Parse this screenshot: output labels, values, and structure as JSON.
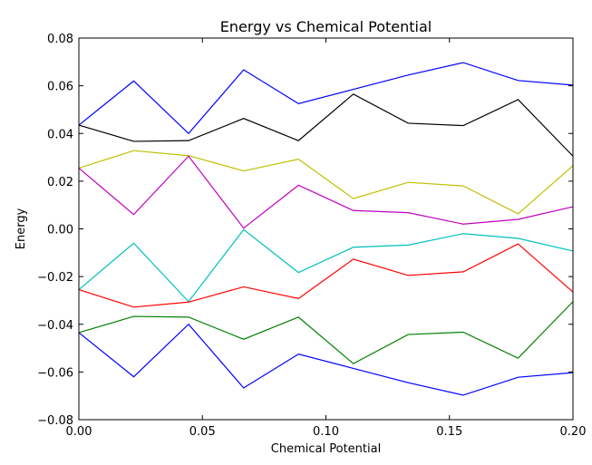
{
  "chart_data": {
    "type": "line",
    "title": "Energy vs Chemical Potential",
    "xlabel": "Chemical Potential",
    "ylabel": "Energy",
    "xlim": [
      0.0,
      0.2
    ],
    "ylim": [
      -0.08,
      0.08
    ],
    "xticks": [
      "0.00",
      "0.05",
      "0.10",
      "0.15",
      "0.20"
    ],
    "yticks": [
      "−0.08",
      "−0.06",
      "−0.04",
      "−0.02",
      "0.00",
      "0.02",
      "0.04",
      "0.06",
      "0.08"
    ],
    "grid": false,
    "x": [
      0.0,
      0.0222,
      0.0444,
      0.0667,
      0.0889,
      0.1111,
      0.1333,
      0.1556,
      0.1778,
      0.2
    ],
    "series": [
      {
        "color": "#0000ff",
        "values": [
          0.0435,
          0.062,
          0.04,
          0.0667,
          0.0525,
          0.0585,
          0.0645,
          0.0697,
          0.0622,
          0.0603
        ]
      },
      {
        "color": "#000000",
        "values": [
          0.0435,
          0.0367,
          0.037,
          0.0463,
          0.037,
          0.0565,
          0.0443,
          0.0433,
          0.0542,
          0.0305
        ]
      },
      {
        "color": "#bfbf00",
        "values": [
          0.0255,
          0.0328,
          0.0307,
          0.0243,
          0.0292,
          0.0127,
          0.0195,
          0.018,
          0.0063,
          0.0265
        ]
      },
      {
        "color": "#bf00bf",
        "values": [
          0.0255,
          0.006,
          0.0305,
          0.0003,
          0.0183,
          0.0077,
          0.0068,
          0.002,
          0.004,
          0.0093
        ]
      },
      {
        "color": "#00bfbf",
        "values": [
          -0.0255,
          -0.006,
          -0.0305,
          -0.0003,
          -0.0183,
          -0.0077,
          -0.0068,
          -0.002,
          -0.004,
          -0.0093
        ]
      },
      {
        "color": "#ff0000",
        "values": [
          -0.0255,
          -0.0328,
          -0.0307,
          -0.0243,
          -0.0292,
          -0.0127,
          -0.0195,
          -0.018,
          -0.0063,
          -0.0265
        ]
      },
      {
        "color": "#008000",
        "values": [
          -0.0435,
          -0.0367,
          -0.037,
          -0.0463,
          -0.037,
          -0.0565,
          -0.0443,
          -0.0433,
          -0.0542,
          -0.0305
        ]
      },
      {
        "color": "#0000ff",
        "values": [
          -0.0435,
          -0.062,
          -0.04,
          -0.0667,
          -0.0525,
          -0.0585,
          -0.0645,
          -0.0697,
          -0.0622,
          -0.0603
        ]
      }
    ]
  }
}
